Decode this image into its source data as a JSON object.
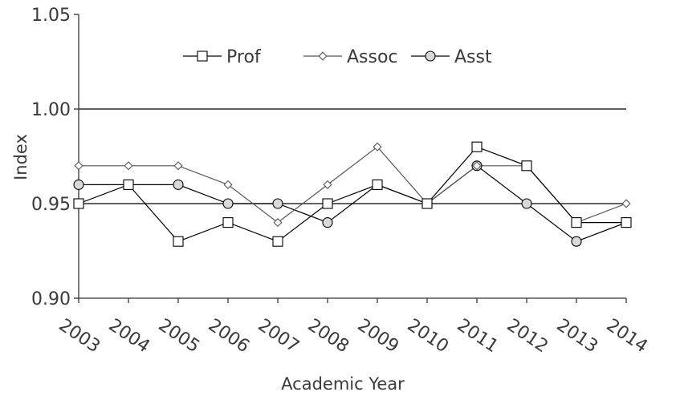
{
  "chart_data": {
    "type": "line",
    "title": "",
    "xlabel": "Academic Year",
    "ylabel": "Index",
    "ylim": [
      0.9,
      1.05
    ],
    "yticks": [
      "0.90",
      "0.95",
      "1.00",
      "1.05"
    ],
    "gridlines": [
      0.95,
      1.0
    ],
    "legend_position": "top-center",
    "categories": [
      "2003",
      "2004",
      "2005",
      "2006",
      "2007",
      "2008",
      "2009",
      "2010",
      "2011",
      "2012",
      "2013",
      "2014"
    ],
    "series": [
      {
        "name": "Prof",
        "marker": "square",
        "values": [
          0.95,
          0.96,
          0.93,
          0.94,
          0.93,
          0.95,
          0.96,
          0.95,
          0.98,
          0.97,
          0.94,
          0.94
        ]
      },
      {
        "name": "Assoc",
        "marker": "diamond",
        "values": [
          0.97,
          0.97,
          0.97,
          0.96,
          0.94,
          0.96,
          0.98,
          0.95,
          0.97,
          0.97,
          0.94,
          0.95
        ]
      },
      {
        "name": "Asst",
        "marker": "circle",
        "values": [
          0.96,
          0.96,
          0.96,
          0.95,
          0.95,
          0.94,
          0.96,
          0.95,
          0.97,
          0.95,
          0.93,
          0.94
        ]
      }
    ]
  }
}
